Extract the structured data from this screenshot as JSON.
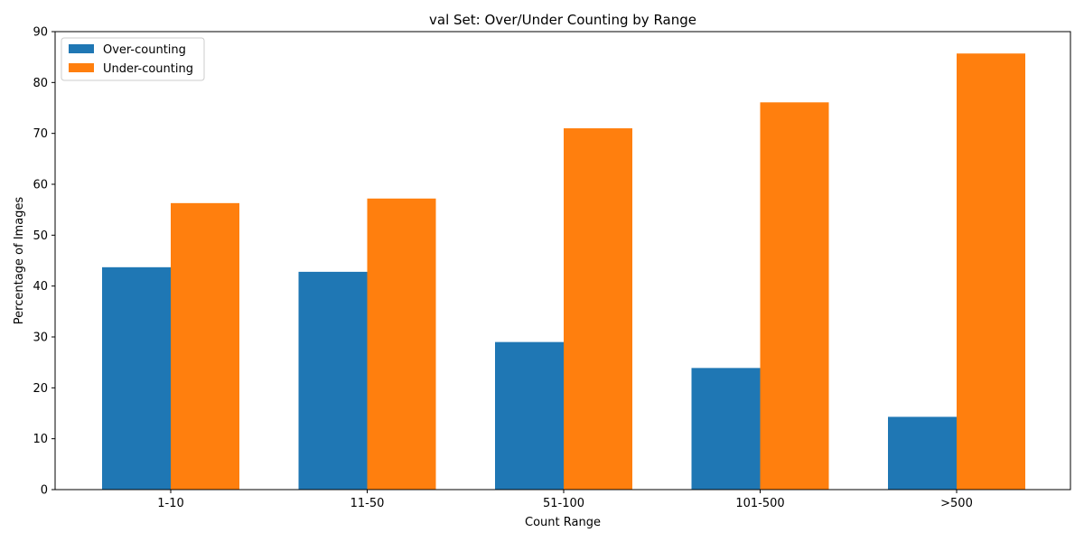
{
  "chart_data": {
    "type": "bar",
    "title": "val Set: Over/Under Counting by Range",
    "xlabel": "Count Range",
    "ylabel": "Percentage of Images",
    "categories": [
      "1-10",
      "11-50",
      "51-100",
      "101-500",
      ">500"
    ],
    "series": [
      {
        "name": "Over-counting",
        "color": "#1f77b4",
        "values": [
          43.7,
          42.8,
          29.0,
          23.9,
          14.3
        ]
      },
      {
        "name": "Under-counting",
        "color": "#ff7f0e",
        "values": [
          56.3,
          57.2,
          71.0,
          76.1,
          85.7
        ]
      }
    ],
    "ylim": [
      0,
      90
    ],
    "yticks": [
      0,
      10,
      20,
      30,
      40,
      50,
      60,
      70,
      80,
      90
    ],
    "grid": false,
    "legend_position": "top-left"
  }
}
